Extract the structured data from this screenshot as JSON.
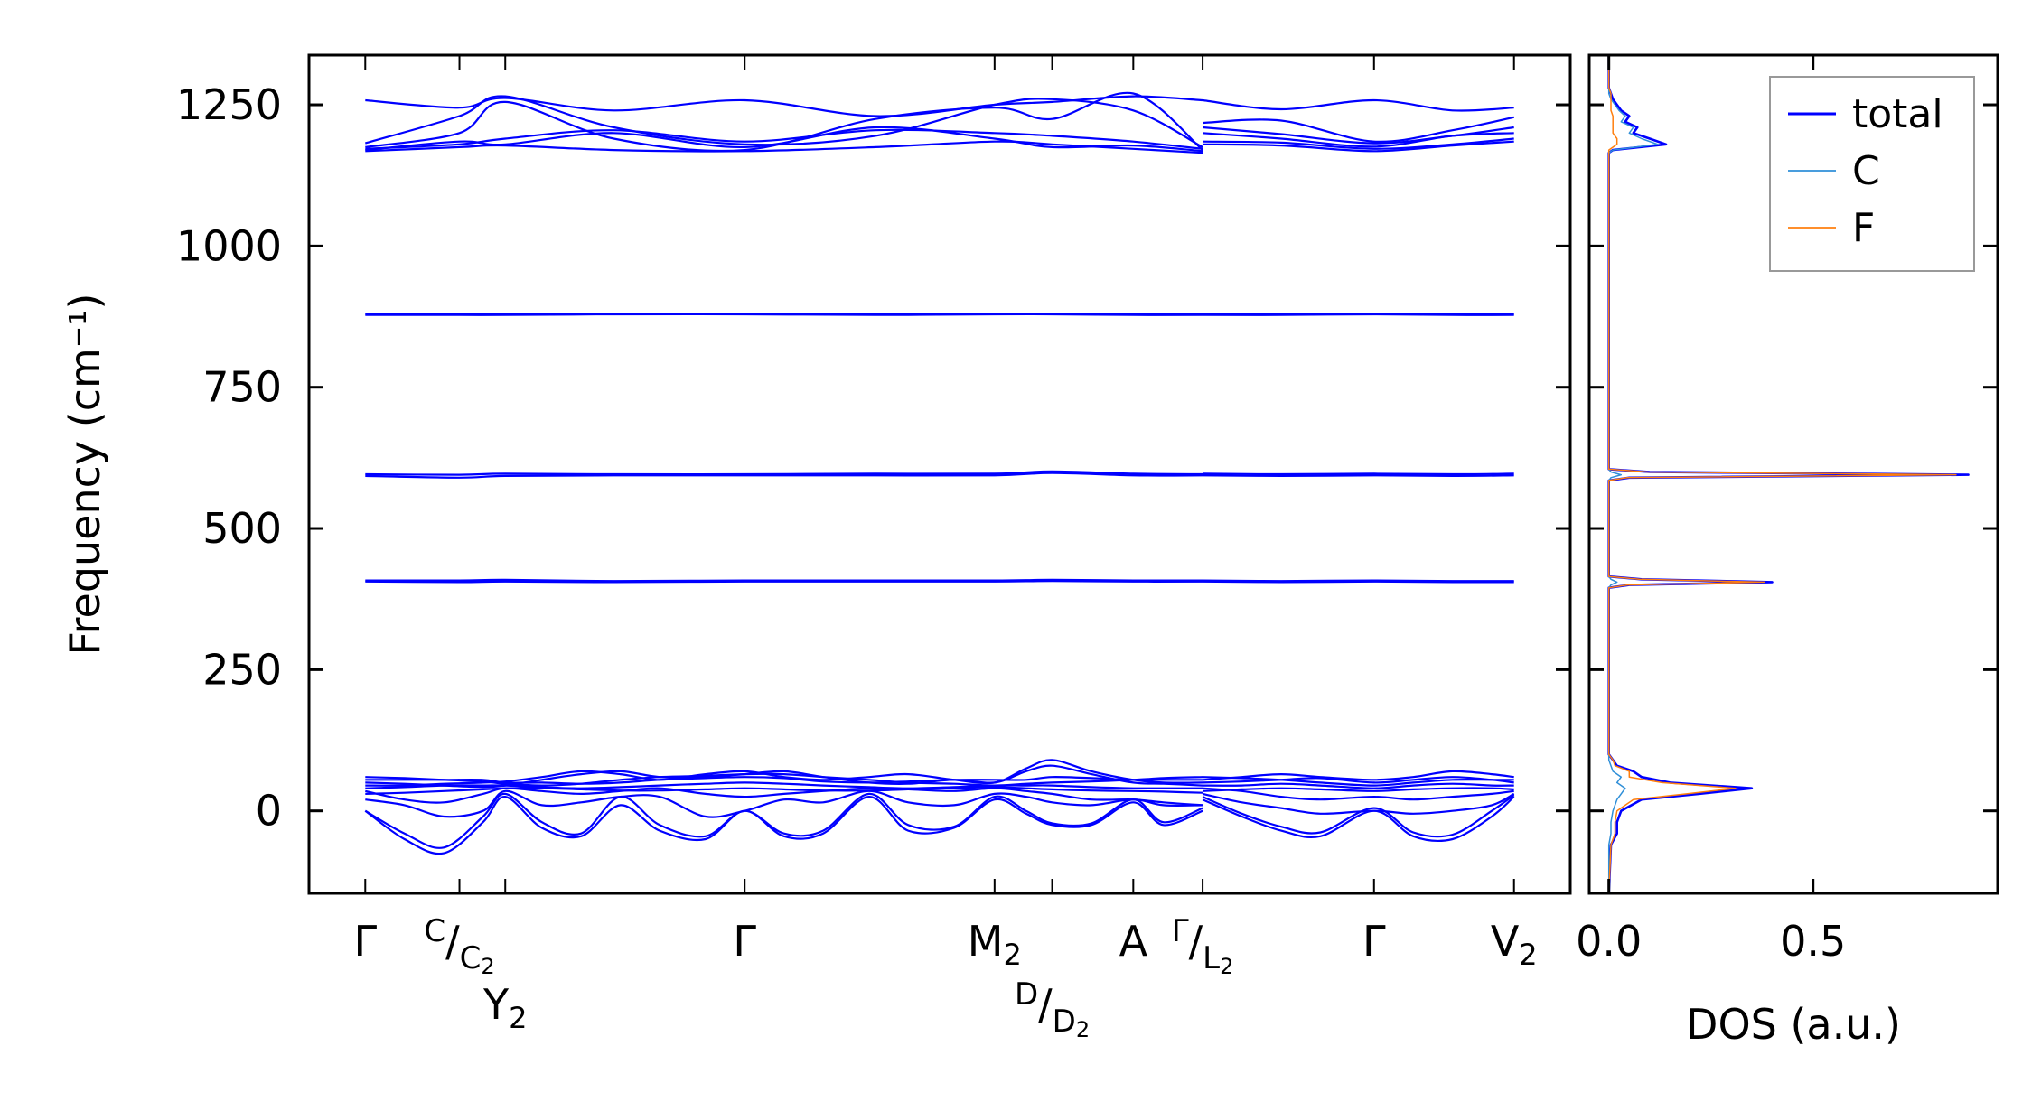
{
  "chart_data": [
    {
      "type": "line",
      "title": "",
      "ylabel": "Frequency (cm⁻¹)",
      "xlabel": "",
      "ylim": [
        -146,
        1338
      ],
      "xlim": [
        -0.43,
        9.21
      ],
      "yticks": [
        0,
        250,
        500,
        750,
        1000,
        1250
      ],
      "ytick_labels": [
        "0",
        "250",
        "500",
        "750",
        "1000",
        "1250"
      ],
      "band_color": "#0000ff",
      "kpoints": [
        {
          "x": 0.0,
          "text": "Γ"
        },
        {
          "x": 0.72,
          "num": "C",
          "den": "C",
          "den_sub": "2"
        },
        {
          "x": 1.07,
          "text": "Y",
          "sub": "2"
        },
        {
          "x": 2.9,
          "text": "Γ"
        },
        {
          "x": 4.81,
          "text": "M",
          "sub": "2"
        },
        {
          "x": 5.25,
          "num": "D",
          "den": "D",
          "den_sub": "2"
        },
        {
          "x": 5.87,
          "text": "A"
        },
        {
          "x": 6.4,
          "num": "Γ",
          "den": "L",
          "den_sub": "2"
        },
        {
          "x": 7.71,
          "text": "Γ"
        },
        {
          "x": 8.78,
          "text": "V",
          "sub": "2"
        }
      ],
      "grids": {
        "coarse1": [
          0,
          0.72,
          1.07,
          1.9,
          2.9,
          3.9,
          4.81,
          5.25,
          5.87,
          6.4
        ],
        "coarse2": [
          6.4,
          7.0,
          7.71,
          8.31,
          8.78
        ],
        "fine1": [
          0,
          0.3,
          0.6,
          0.9,
          1.07,
          1.35,
          1.65,
          1.95,
          2.25,
          2.6,
          2.9,
          3.2,
          3.5,
          3.85,
          4.15,
          4.5,
          4.81,
          5.05,
          5.25,
          5.55,
          5.87,
          6.1,
          6.4
        ],
        "fine2": [
          6.4,
          6.7,
          7.0,
          7.3,
          7.71,
          8.01,
          8.31,
          8.61,
          8.78
        ]
      },
      "bands": [
        {
          "grid": "coarse1",
          "y": [
            1258,
            1245,
            1262,
            1240,
            1258,
            1230,
            1250,
            1255,
            1265,
            1258
          ]
        },
        {
          "grid": "coarse1",
          "y": [
            1182,
            1230,
            1265,
            1210,
            1180,
            1195,
            1250,
            1260,
            1240,
            1175
          ]
        },
        {
          "grid": "coarse1",
          "y": [
            1175,
            1200,
            1255,
            1190,
            1170,
            1225,
            1245,
            1225,
            1270,
            1170
          ]
        },
        {
          "grid": "coarse1",
          "y": [
            1172,
            1180,
            1190,
            1205,
            1185,
            1205,
            1200,
            1195,
            1185,
            1172
          ]
        },
        {
          "grid": "coarse1",
          "y": [
            1170,
            1185,
            1180,
            1200,
            1175,
            1210,
            1190,
            1175,
            1178,
            1168
          ]
        },
        {
          "grid": "coarse1",
          "y": [
            1168,
            1175,
            1178,
            1170,
            1168,
            1175,
            1185,
            1180,
            1172,
            1165
          ]
        },
        {
          "grid": "coarse2",
          "y": [
            1258,
            1242,
            1258,
            1240,
            1245
          ]
        },
        {
          "grid": "coarse2",
          "y": [
            1218,
            1222,
            1185,
            1205,
            1228
          ]
        },
        {
          "grid": "coarse2",
          "y": [
            1210,
            1198,
            1182,
            1195,
            1210
          ]
        },
        {
          "grid": "coarse2",
          "y": [
            1200,
            1190,
            1176,
            1195,
            1200
          ]
        },
        {
          "grid": "coarse2",
          "y": [
            1185,
            1183,
            1172,
            1180,
            1190
          ]
        },
        {
          "grid": "coarse2",
          "y": [
            1180,
            1178,
            1168,
            1178,
            1185
          ]
        },
        {
          "grid": "coarse1",
          "y": [
            880,
            879,
            880,
            880,
            880,
            879,
            880,
            880,
            880,
            880
          ]
        },
        {
          "grid": "coarse1",
          "y": [
            878,
            878,
            878,
            879,
            879,
            878,
            879,
            879,
            878,
            878
          ]
        },
        {
          "grid": "coarse2",
          "y": [
            880,
            879,
            880,
            880,
            880
          ]
        },
        {
          "grid": "coarse2",
          "y": [
            878,
            878,
            879,
            878,
            878
          ]
        },
        {
          "grid": "coarse1",
          "y": [
            596,
            595,
            597,
            596,
            596,
            597,
            597,
            601,
            597,
            596
          ]
        },
        {
          "grid": "coarse1",
          "y": [
            593,
            590,
            593,
            594,
            594,
            594,
            594,
            598,
            594,
            594
          ]
        },
        {
          "grid": "coarse2",
          "y": [
            597,
            596,
            597,
            596,
            597
          ]
        },
        {
          "grid": "coarse2",
          "y": [
            594,
            593,
            594,
            593,
            594
          ]
        },
        {
          "grid": "coarse1",
          "y": [
            408,
            408,
            409,
            407,
            408,
            408,
            408,
            409,
            408,
            408
          ]
        },
        {
          "grid": "coarse1",
          "y": [
            406,
            405,
            406,
            405,
            406,
            406,
            406,
            407,
            406,
            406
          ]
        },
        {
          "grid": "coarse2",
          "y": [
            408,
            407,
            408,
            407,
            407
          ]
        },
        {
          "grid": "coarse2",
          "y": [
            406,
            405,
            406,
            405,
            405
          ]
        },
        {
          "grid": "fine1",
          "y": [
            0,
            -50,
            -75,
            -20,
            25,
            -30,
            -45,
            10,
            -35,
            -50,
            0,
            -45,
            -40,
            25,
            -35,
            -30,
            20,
            -5,
            -25,
            -25,
            15,
            -25,
            0
          ]
        },
        {
          "grid": "fine1",
          "y": [
            0,
            -40,
            -65,
            -10,
            30,
            -20,
            -40,
            25,
            -25,
            -45,
            0,
            -40,
            -35,
            30,
            -25,
            -28,
            25,
            0,
            -22,
            -22,
            20,
            -20,
            5
          ]
        },
        {
          "grid": "fine1",
          "y": [
            20,
            10,
            -10,
            0,
            35,
            10,
            15,
            25,
            25,
            -10,
            0,
            20,
            15,
            35,
            15,
            10,
            30,
            25,
            15,
            10,
            20,
            10,
            10
          ]
        },
        {
          "grid": "fine1",
          "y": [
            35,
            20,
            15,
            30,
            40,
            35,
            30,
            35,
            40,
            30,
            25,
            30,
            35,
            40,
            38,
            35,
            40,
            35,
            30,
            20,
            20,
            15,
            10
          ]
        },
        {
          "grid": "fine1",
          "y": [
            45,
            45,
            48,
            50,
            52,
            60,
            70,
            65,
            55,
            65,
            70,
            60,
            55,
            60,
            65,
            55,
            50,
            75,
            90,
            70,
            55,
            50,
            50
          ]
        },
        {
          "grid": "fine1",
          "y": [
            50,
            48,
            45,
            42,
            45,
            55,
            65,
            70,
            60,
            60,
            65,
            70,
            60,
            50,
            48,
            55,
            50,
            70,
            80,
            65,
            50,
            48,
            45
          ]
        },
        {
          "grid": "fine1",
          "y": [
            55,
            55,
            55,
            55,
            50,
            50,
            48,
            50,
            55,
            58,
            60,
            58,
            52,
            50,
            52,
            55,
            55,
            55,
            60,
            58,
            55,
            55,
            55
          ]
        },
        {
          "grid": "fine1",
          "y": [
            60,
            58,
            55,
            52,
            48,
            45,
            48,
            55,
            60,
            62,
            65,
            65,
            60,
            55,
            50,
            48,
            45,
            48,
            50,
            52,
            55,
            58,
            60
          ]
        },
        {
          "grid": "fine1",
          "y": [
            40,
            42,
            45,
            45,
            45,
            42,
            40,
            42,
            45,
            48,
            50,
            48,
            45,
            42,
            40,
            42,
            45,
            45,
            45,
            42,
            40,
            40,
            40
          ]
        },
        {
          "grid": "fine1",
          "y": [
            30,
            32,
            35,
            38,
            40,
            40,
            38,
            36,
            36,
            38,
            40,
            38,
            36,
            36,
            38,
            40,
            42,
            40,
            38,
            36,
            35,
            34,
            32
          ]
        },
        {
          "grid": "fine2",
          "y": [
            20,
            -10,
            -35,
            -45,
            0,
            -45,
            -50,
            -10,
            25
          ]
        },
        {
          "grid": "fine2",
          "y": [
            25,
            -5,
            -28,
            -38,
            5,
            -38,
            -42,
            0,
            28
          ]
        },
        {
          "grid": "fine2",
          "y": [
            30,
            15,
            5,
            -5,
            0,
            -5,
            0,
            10,
            30
          ]
        },
        {
          "grid": "fine2",
          "y": [
            40,
            35,
            25,
            20,
            25,
            20,
            25,
            30,
            35
          ]
        },
        {
          "grid": "fine2",
          "y": [
            55,
            60,
            65,
            60,
            55,
            60,
            70,
            65,
            60
          ]
        },
        {
          "grid": "fine2",
          "y": [
            50,
            52,
            55,
            58,
            50,
            55,
            60,
            55,
            50
          ]
        },
        {
          "grid": "fine2",
          "y": [
            60,
            58,
            55,
            50,
            45,
            50,
            55,
            55,
            55
          ]
        },
        {
          "grid": "fine2",
          "y": [
            45,
            45,
            48,
            45,
            40,
            45,
            48,
            45,
            45
          ]
        },
        {
          "grid": "fine2",
          "y": [
            35,
            38,
            40,
            38,
            35,
            38,
            40,
            40,
            38
          ]
        }
      ]
    },
    {
      "type": "line",
      "xlabel": "DOS (a.u.)",
      "xlim": [
        -0.048,
        0.952
      ],
      "xticks": [
        0.0,
        0.5
      ],
      "xtick_labels": [
        "0.0",
        "0.5"
      ],
      "legend_position": "top-right",
      "frequency": [
        -146,
        -60,
        -40,
        -20,
        0,
        20,
        30,
        40,
        50,
        60,
        70,
        80,
        90,
        100,
        380,
        395,
        400,
        405,
        410,
        415,
        430,
        570,
        585,
        590,
        595,
        600,
        605,
        620,
        1150,
        1165,
        1170,
        1180,
        1190,
        1200,
        1210,
        1220,
        1230,
        1240,
        1250,
        1260,
        1270,
        1280,
        1338
      ],
      "series": [
        {
          "name": "total",
          "color": "#0000ff",
          "values": [
            0,
            0.005,
            0.02,
            0.02,
            0.03,
            0.08,
            0.22,
            0.35,
            0.15,
            0.08,
            0.06,
            0.02,
            0.01,
            0,
            0,
            0,
            0.05,
            0.4,
            0.08,
            0,
            0,
            0,
            0,
            0.05,
            0.88,
            0.1,
            0,
            0,
            0,
            0,
            0.01,
            0.14,
            0.1,
            0.06,
            0.07,
            0.04,
            0.05,
            0.03,
            0.02,
            0.01,
            0.005,
            0,
            0
          ]
        },
        {
          "name": "C",
          "color": "#2f8fd8",
          "values": [
            0,
            0,
            0.005,
            0.005,
            0.01,
            0.02,
            0.03,
            0.04,
            0.02,
            0.03,
            0.01,
            0.005,
            0,
            0,
            0,
            0,
            0.005,
            0.02,
            0.005,
            0,
            0,
            0,
            0,
            0.005,
            0.03,
            0.005,
            0,
            0,
            0,
            0,
            0.01,
            0.12,
            0.08,
            0.05,
            0.06,
            0.03,
            0.04,
            0.025,
            0.015,
            0.005,
            0,
            0,
            0
          ]
        },
        {
          "name": "F",
          "color": "#ff7f0e",
          "values": [
            0,
            0.005,
            0.015,
            0.015,
            0.02,
            0.06,
            0.19,
            0.31,
            0.13,
            0.05,
            0.05,
            0.015,
            0.01,
            0,
            0,
            0,
            0.045,
            0.38,
            0.075,
            0,
            0,
            0,
            0,
            0.045,
            0.85,
            0.095,
            0,
            0,
            0,
            0,
            0,
            0.02,
            0.02,
            0.01,
            0.01,
            0.01,
            0.01,
            0.005,
            0.005,
            0.005,
            0.005,
            0,
            0
          ]
        }
      ]
    }
  ]
}
